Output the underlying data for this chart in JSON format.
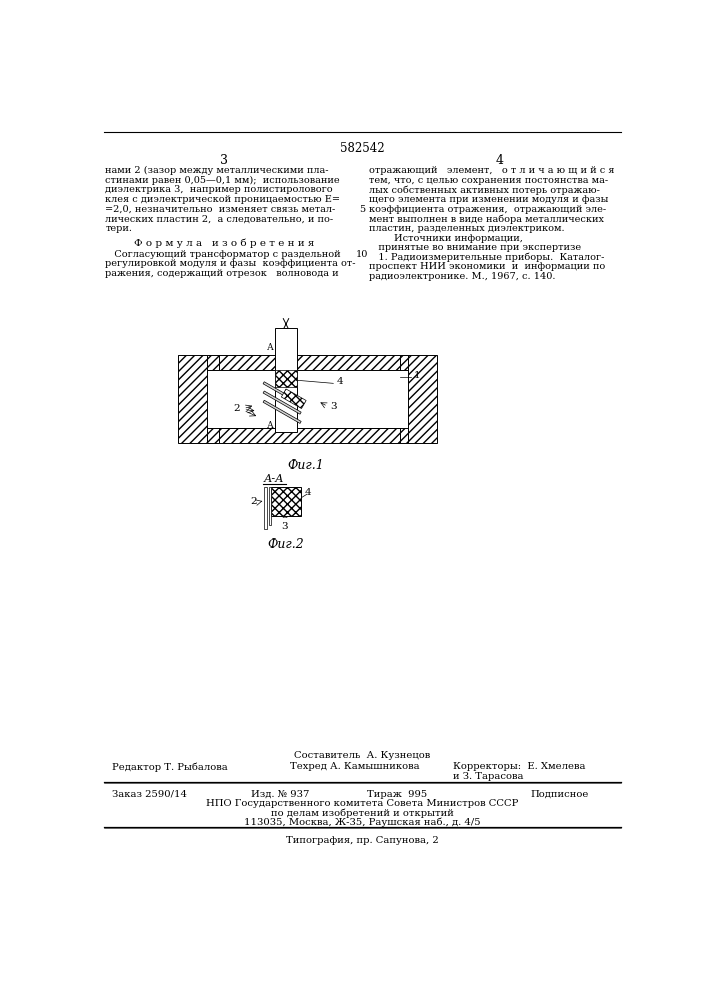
{
  "bg_color": "#ffffff",
  "page_number_center": "582542",
  "page_col_left": "3",
  "page_col_right": "4",
  "col_left_text": [
    "нами 2 (зазор между металлическими пла-",
    "стинами равен 0,05—0,1 мм);  использование",
    "диэлектрика 3,  например полистиролового",
    "клея с диэлектрической проницаемостью E=",
    "=2,0, незначительно  изменяет связь метал-",
    "лических пластин 2,  а следовательно, и по-",
    "тери."
  ],
  "formula_header": "Ф о р м у л а   и з о б р е т е н и я",
  "formula_text": [
    "   Согласующий трансформатор с раздельной",
    "регулировкой модуля и фазы  коэффициента от-",
    "ражения, содержащий отрезок   волновода и"
  ],
  "line_number": "5",
  "line_number2": "10",
  "col_right_text": [
    "отражающий   элемент,   о т л и ч а ю щ и й с я",
    "тем, что, с целью сохранения постоянства ма-",
    "лых собственных активных потерь отражаю-",
    "щего элемента при изменении модуля и фазы",
    "коэффициента отражения,  отражающий эле-",
    "мент выполнен в виде набора металлических",
    "пластин, разделенных диэлектриком.",
    "        Источники информации,",
    "   принятые во внимание при экспертизе",
    "   1. Радиоизмерительные приборы.  Каталог-",
    "проспект НИИ экономики  и  информации по",
    "радиоэлектронике. М., 1967, с. 140."
  ],
  "fig1_label": "Фиг.1",
  "fig2_label": "Фиг.2",
  "aa_label": "А-А",
  "footer_sestavitel": "Составитель  А. Кузнецов",
  "footer_redaktor": "Редактор Т. Рыбалова",
  "footer_texred": "Техред А. Камышникова",
  "footer_korrektor1": "Корректоры:  Е. Хмелева",
  "footer_korrektor2": "и З. Тарасова",
  "footer_zakaz": "Заказ 2590/14",
  "footer_izd": "Изд. № 937",
  "footer_tirazh": "Тираж  995",
  "footer_podpisnoe": "Подписное",
  "footer_npo1": "НПО Государственного комитета Совета Министров СССР",
  "footer_npo2": "по делам изобретений и открытий",
  "footer_npo3": "113035, Москва, Ж-35, Раушская наб., д. 4/5",
  "footer_last": "Типография, пр. Сапунова, 2"
}
